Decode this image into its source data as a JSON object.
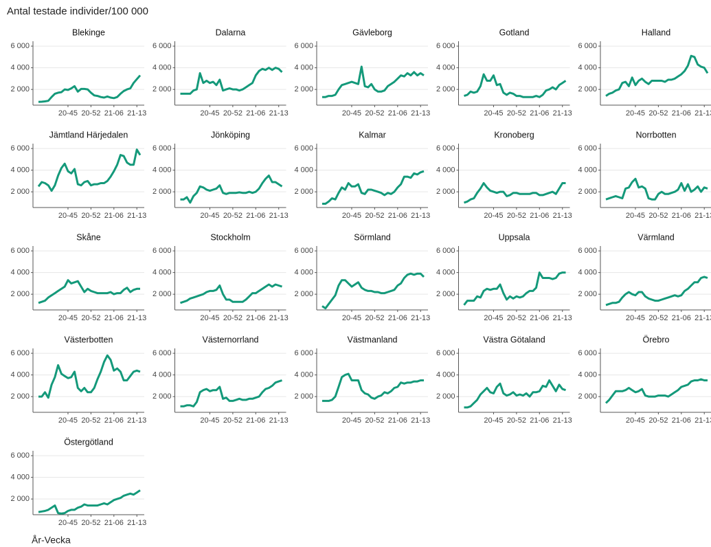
{
  "chart_data": {
    "type": "line",
    "facets": true,
    "title": "Antal testade individer/100 000",
    "xlabel": "År-Vecka",
    "color": "#14997a",
    "grid": true,
    "x": [
      null,
      null,
      null,
      null,
      null,
      null,
      null,
      null,
      null,
      "20-45",
      null,
      null,
      null,
      null,
      null,
      null,
      "20-52",
      null,
      null,
      null,
      null,
      null,
      null,
      "21-06",
      null,
      null,
      null,
      null,
      null,
      null,
      "21-13",
      null
    ],
    "ylim": [
      550,
      6450
    ],
    "yticks": [
      {
        "value": 2000,
        "label": "2 000"
      },
      {
        "value": 4000,
        "label": "4 000"
      },
      {
        "value": 6000,
        "label": "6 000"
      }
    ],
    "series": [
      {
        "name": "Blekinge",
        "values": [
          850,
          870,
          900,
          950,
          1300,
          1600,
          1700,
          1750,
          2000,
          1950,
          2100,
          2300,
          1800,
          2050,
          2050,
          2000,
          1700,
          1450,
          1400,
          1300,
          1250,
          1350,
          1250,
          1200,
          1300,
          1600,
          1850,
          2000,
          2100,
          2600,
          2950,
          3300
        ]
      },
      {
        "name": "Dalarna",
        "values": [
          1600,
          1600,
          1600,
          1600,
          1900,
          2000,
          3500,
          2600,
          2800,
          2600,
          2700,
          2400,
          2900,
          1900,
          2000,
          2100,
          2000,
          2000,
          1900,
          2000,
          2200,
          2400,
          2600,
          3300,
          3700,
          3900,
          3800,
          4000,
          3800,
          4000,
          3900,
          3600
        ]
      },
      {
        "name": "Gävleborg",
        "values": [
          1300,
          1300,
          1400,
          1400,
          1500,
          2000,
          2400,
          2500,
          2600,
          2700,
          2600,
          2500,
          4100,
          2300,
          2200,
          2500,
          2000,
          1800,
          1800,
          1900,
          2300,
          2500,
          2700,
          3000,
          3300,
          3200,
          3500,
          3300,
          3600,
          3300,
          3500,
          3300
        ]
      },
      {
        "name": "Gotland",
        "values": [
          1400,
          1500,
          1800,
          1700,
          1800,
          2300,
          3400,
          2800,
          2800,
          3300,
          2400,
          2500,
          1700,
          1500,
          1700,
          1600,
          1400,
          1400,
          1300,
          1300,
          1300,
          1300,
          1400,
          1300,
          1500,
          1900,
          2000,
          2200,
          2000,
          2400,
          2600,
          2800
        ]
      },
      {
        "name": "Halland",
        "values": [
          1400,
          1600,
          1700,
          1900,
          2000,
          2600,
          2700,
          2300,
          3100,
          2400,
          2800,
          3000,
          2700,
          2500,
          2800,
          2800,
          2800,
          2800,
          2700,
          2900,
          2900,
          3000,
          3200,
          3400,
          3700,
          4200,
          5100,
          5000,
          4300,
          4100,
          4000,
          3500
        ]
      },
      {
        "name": "Jämtland Härjedalen",
        "values": [
          2500,
          2900,
          2800,
          2600,
          2100,
          2600,
          3500,
          4200,
          4600,
          3900,
          3700,
          4100,
          2700,
          2600,
          2900,
          3000,
          2600,
          2700,
          2700,
          2800,
          2800,
          3000,
          3400,
          3900,
          4500,
          5400,
          5300,
          4700,
          4500,
          4500,
          5900,
          5400
        ]
      },
      {
        "name": "Jönköping",
        "values": [
          1300,
          1300,
          1500,
          1000,
          1600,
          1900,
          2500,
          2400,
          2200,
          2100,
          2200,
          2300,
          2600,
          1900,
          1800,
          1900,
          1900,
          1900,
          1950,
          1900,
          1900,
          2000,
          1900,
          2000,
          2300,
          2800,
          3200,
          3500,
          2900,
          2900,
          2700,
          2500
        ]
      },
      {
        "name": "Kalmar",
        "values": [
          900,
          900,
          1100,
          1400,
          1300,
          1900,
          2400,
          2200,
          2800,
          2500,
          2500,
          2700,
          1900,
          1800,
          2200,
          2200,
          2100,
          2000,
          1900,
          1700,
          1900,
          1800,
          2000,
          2400,
          2700,
          3400,
          3400,
          3300,
          3700,
          3600,
          3800,
          3900
        ]
      },
      {
        "name": "Kronoberg",
        "values": [
          1000,
          1100,
          1300,
          1400,
          1900,
          2300,
          2800,
          2400,
          2100,
          2000,
          1900,
          2000,
          2000,
          1600,
          1700,
          1900,
          1900,
          1800,
          1800,
          1800,
          1800,
          1900,
          1900,
          1700,
          1700,
          1800,
          1900,
          2000,
          1800,
          2300,
          2800,
          2800
        ]
      },
      {
        "name": "Norrbotten",
        "values": [
          1300,
          1400,
          1500,
          1600,
          1500,
          1400,
          2300,
          2400,
          2900,
          3200,
          2400,
          2500,
          2300,
          1400,
          1300,
          1300,
          1800,
          2000,
          1800,
          1800,
          1900,
          2000,
          2200,
          2800,
          2100,
          2700,
          2000,
          2200,
          2500,
          2000,
          2400,
          2300
        ]
      },
      {
        "name": "Skåne",
        "values": [
          1200,
          1300,
          1400,
          1700,
          1900,
          2100,
          2300,
          2500,
          2700,
          3300,
          3000,
          3100,
          3200,
          2700,
          2200,
          2500,
          2300,
          2200,
          2100,
          2100,
          2100,
          2100,
          2200,
          2000,
          2100,
          2100,
          2400,
          2600,
          2200,
          2400,
          2500,
          2500
        ]
      },
      {
        "name": "Stockholm",
        "values": [
          1200,
          1300,
          1400,
          1600,
          1700,
          1800,
          1900,
          2000,
          2200,
          2300,
          2300,
          2400,
          2800,
          2000,
          1500,
          1500,
          1300,
          1300,
          1300,
          1300,
          1500,
          1800,
          2100,
          2100,
          2300,
          2500,
          2700,
          2900,
          2700,
          2900,
          2800,
          2700
        ]
      },
      {
        "name": "Sörmland",
        "values": [
          900,
          700,
          1100,
          1500,
          1900,
          2800,
          3300,
          3300,
          3000,
          2700,
          2900,
          3100,
          2600,
          2400,
          2300,
          2300,
          2200,
          2200,
          2100,
          2100,
          2200,
          2300,
          2400,
          2800,
          3000,
          3500,
          3800,
          3900,
          3800,
          3900,
          3900,
          3600
        ]
      },
      {
        "name": "Uppsala",
        "values": [
          1000,
          1400,
          1400,
          1400,
          1800,
          1700,
          2300,
          2500,
          2400,
          2500,
          2500,
          2900,
          2100,
          1500,
          1800,
          1600,
          1800,
          1700,
          1800,
          2100,
          2300,
          2300,
          2600,
          4000,
          3500,
          3500,
          3500,
          3400,
          3500,
          3900,
          4000,
          4000
        ]
      },
      {
        "name": "Värmland",
        "values": [
          1000,
          1100,
          1200,
          1200,
          1300,
          1700,
          2000,
          2200,
          2000,
          1900,
          2200,
          2200,
          1800,
          1600,
          1500,
          1400,
          1400,
          1500,
          1600,
          1700,
          1800,
          1900,
          1800,
          1900,
          2300,
          2500,
          2800,
          3100,
          3100,
          3500,
          3600,
          3500
        ]
      },
      {
        "name": "Västerbotten",
        "values": [
          2000,
          2000,
          2400,
          1900,
          3100,
          3800,
          4900,
          4100,
          3900,
          3700,
          3800,
          4300,
          2800,
          2500,
          2800,
          2400,
          2400,
          2800,
          3600,
          4300,
          5200,
          5800,
          5400,
          4400,
          4600,
          4300,
          3500,
          3500,
          3900,
          4300,
          4400,
          4300
        ]
      },
      {
        "name": "Västernorrland",
        "values": [
          1100,
          1100,
          1200,
          1200,
          1100,
          1500,
          2400,
          2600,
          2700,
          2500,
          2600,
          2600,
          2900,
          1800,
          1900,
          1600,
          1600,
          1700,
          1800,
          1700,
          1700,
          1800,
          1800,
          1900,
          2000,
          2400,
          2700,
          2800,
          3000,
          3300,
          3400,
          3500
        ]
      },
      {
        "name": "Västmanland",
        "values": [
          1600,
          1600,
          1600,
          1700,
          2000,
          2900,
          3800,
          4000,
          4100,
          3500,
          3500,
          3500,
          2600,
          2300,
          2200,
          1900,
          1800,
          2000,
          2100,
          2400,
          2300,
          2500,
          2800,
          2900,
          3300,
          3200,
          3300,
          3300,
          3400,
          3400,
          3500,
          3500
        ]
      },
      {
        "name": "Västra Götaland",
        "values": [
          1000,
          1000,
          1100,
          1400,
          1700,
          2200,
          2500,
          2800,
          2400,
          2300,
          2900,
          3200,
          2300,
          2100,
          2200,
          2400,
          2100,
          2200,
          2100,
          2300,
          2000,
          2400,
          2400,
          2500,
          3000,
          2900,
          3500,
          3000,
          2500,
          3100,
          2700,
          2600
        ]
      },
      {
        "name": "Örebro",
        "values": [
          1400,
          1700,
          2100,
          2500,
          2500,
          2500,
          2600,
          2800,
          2600,
          2400,
          2500,
          2700,
          2100,
          2000,
          2000,
          2000,
          2100,
          2100,
          2100,
          2000,
          2200,
          2400,
          2600,
          2900,
          3000,
          3100,
          3400,
          3500,
          3500,
          3600,
          3500,
          3500
        ]
      },
      {
        "name": "Östergötland",
        "values": [
          800,
          850,
          900,
          1000,
          1200,
          1400,
          700,
          650,
          700,
          900,
          1000,
          1000,
          1200,
          1300,
          1500,
          1400,
          1400,
          1400,
          1400,
          1500,
          1600,
          1500,
          1700,
          1900,
          2000,
          2100,
          2300,
          2400,
          2500,
          2400,
          2600,
          2800
        ]
      }
    ]
  }
}
